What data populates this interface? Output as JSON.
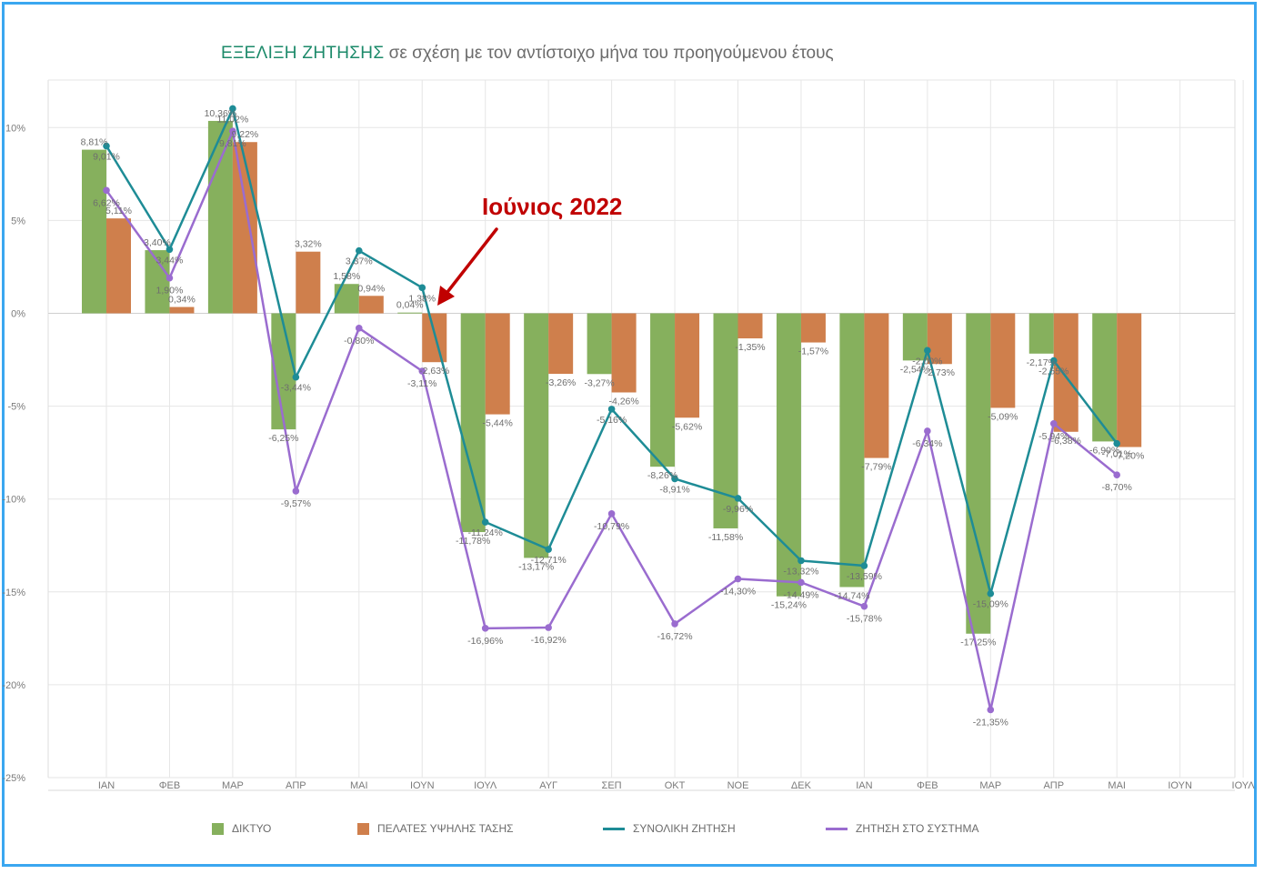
{
  "title_main": "ΕΞΕΛΙΞΗ ΖΗΤΗΣΗΣ",
  "title_sub": " σε σχέση με τον αντίστοιχο μήνα του προηγούμενου έτους",
  "annotation": "Ιούνιος 2022",
  "colors": {
    "diktyo": "#86b05d",
    "pelates": "#cf7f4c",
    "synoliki": "#1e8c96",
    "systima": "#9a6ccf",
    "grid": "#e6e6e6",
    "annotation": "#c00000",
    "frame": "#3aa7f0"
  },
  "chart_data": {
    "type": "bar",
    "categories": [
      "ΙΑΝ",
      "ΦΕΒ",
      "ΜΑΡ",
      "ΑΠΡ",
      "ΜΑΙ",
      "ΙΟΥΝ",
      "ΙΟΥΛ",
      "ΑΥΓ",
      "ΣΕΠ",
      "ΟΚΤ",
      "ΝΟΕ",
      "ΔΕΚ",
      "ΙΑΝ",
      "ΦΕΒ",
      "ΜΑΡ",
      "ΑΠΡ",
      "ΜΑΙ",
      "ΙΟΥΝ",
      "ΙΟΥΛ"
    ],
    "yticks": [
      "10%",
      "5%",
      "0%",
      "-5%",
      "-10%",
      "-15%",
      "-20%",
      "-25%"
    ],
    "ytick_values": [
      10,
      5,
      0,
      -5,
      -10,
      -15,
      -20,
      -25
    ],
    "ylim": [
      -25,
      12.5
    ],
    "bar_series": [
      {
        "name": "ΔΙΚΤΥΟ",
        "color_key": "diktyo",
        "values": [
          8.81,
          3.4,
          10.36,
          -6.25,
          1.58,
          0.04,
          -11.78,
          -13.17,
          -3.27,
          -8.26,
          -11.58,
          -15.24,
          -14.74,
          -2.54,
          -17.25,
          -2.17,
          -6.9,
          null,
          null
        ],
        "labels": [
          "8,81%",
          "3,40%",
          "10,36%",
          "-6,25%",
          "1,58%",
          "0,04%",
          "-11,78%",
          "-13,17%",
          "-3,27%",
          "-8,26%",
          "-11,58%",
          "-15,24%",
          "-14,74%",
          "-2,54%",
          "-17,25%",
          "-2,17%",
          "-6,90%",
          "",
          ""
        ]
      },
      {
        "name": "ΠΕΛΑΤΕΣ ΥΨΗΛΗΣ ΤΑΣΗΣ",
        "color_key": "pelates",
        "values": [
          5.11,
          0.34,
          9.22,
          3.32,
          0.94,
          -2.63,
          -5.44,
          -3.26,
          -4.26,
          -5.62,
          -1.35,
          -1.57,
          -7.79,
          -2.73,
          -5.09,
          -6.38,
          -7.2,
          null,
          null
        ],
        "labels": [
          "5,11%",
          "0,34%",
          "9,22%",
          "3,32%",
          "0,94%",
          "-2,63%",
          "-5,44%",
          "-3,26%",
          "-4,26%",
          "-5,62%",
          "-1,35%",
          "-1,57%",
          "-7,79%",
          "-2,73%",
          "-5,09%",
          "-6,38%",
          "-7,20%",
          "",
          ""
        ]
      }
    ],
    "line_series": [
      {
        "name": "ΣΥΝΟΛΙΚΗ ΖΗΤΗΣΗ",
        "color_key": "synoliki",
        "values": [
          9.01,
          3.44,
          11.02,
          -3.44,
          3.37,
          1.38,
          -11.24,
          -12.71,
          -5.16,
          -8.91,
          -9.96,
          -13.32,
          -13.59,
          -2.0,
          -15.09,
          -2.55,
          -7.01,
          null,
          null
        ],
        "labels": [
          "9,01%",
          "3,44%",
          "11,02%",
          "-3,44%",
          "3,37%",
          "1,38%",
          "-11,24%",
          "-12,71%",
          "-5,16%",
          "-8,91%",
          "-9,96%",
          "-13,32%",
          "-13,59%",
          "-2,00%",
          "-15,09%",
          "-2,55%",
          "-7,01%",
          "",
          ""
        ]
      },
      {
        "name": "ΖΗΤΗΣΗ ΣΤΟ ΣΥΣΤΗΜΑ",
        "color_key": "systima",
        "values": [
          6.62,
          1.9,
          9.81,
          -9.57,
          -0.8,
          -3.11,
          -16.96,
          -16.92,
          -10.79,
          -16.72,
          -14.3,
          -14.49,
          -15.78,
          -6.34,
          -21.35,
          -5.94,
          -8.7,
          null,
          null
        ],
        "labels": [
          "6,62%",
          "1,90%",
          "9,81%",
          "-9,57%",
          "-0,80%",
          "-3,11%",
          "-16,96%",
          "-16,92%",
          "-10,79%",
          "-16,72%",
          "-14,30%",
          "-14,49%",
          "-15,78%",
          "-6,34%",
          "-21,35%",
          "-5,94%",
          "-8,70%",
          "",
          ""
        ]
      }
    ],
    "legend": [
      "ΔΙΚΤΥΟ",
      "ΠΕΛΑΤΕΣ ΥΨΗΛΗΣ ΤΑΣΗΣ",
      "ΣΥΝΟΛΙΚΗ ΖΗΤΗΣΗ",
      "ΖΗΤΗΣΗ ΣΤΟ ΣΥΣΤΗΜΑ"
    ],
    "legend_position": "bottom",
    "grid": true
  }
}
